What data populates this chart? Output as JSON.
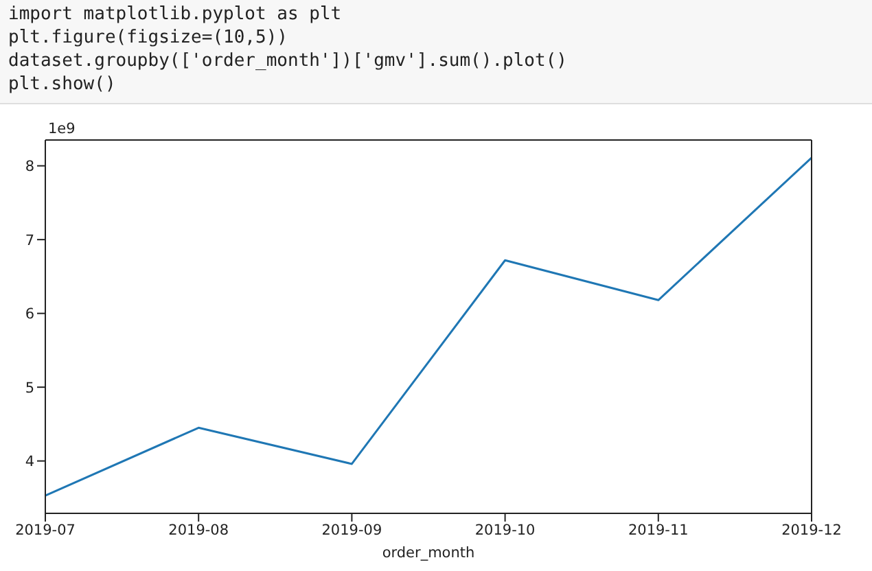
{
  "chart_data": {
    "type": "line",
    "annotations": [
      "import matplotlib.pyplot as plt",
      "plt.figure(figsize=(10,5))",
      "dataset.groupby(['order_month'])['gmv'].sum().plot()",
      "plt.show()",
      "1e9"
    ],
    "xlabel": "order_month",
    "categories": [
      "2019-07",
      "2019-08",
      "2019-09",
      "2019-10",
      "2019-11",
      "2019-12"
    ],
    "series": [
      {
        "color": "#1f77b4",
        "values": [
          3.53,
          4.45,
          3.96,
          6.72,
          6.18,
          8.11
        ]
      }
    ],
    "ylim": [
      3.29,
      8.35
    ],
    "yticks": [
      4,
      5,
      6,
      7,
      8
    ],
    "grid": false,
    "legend": false,
    "marker": "none",
    "line_style": "solid"
  }
}
